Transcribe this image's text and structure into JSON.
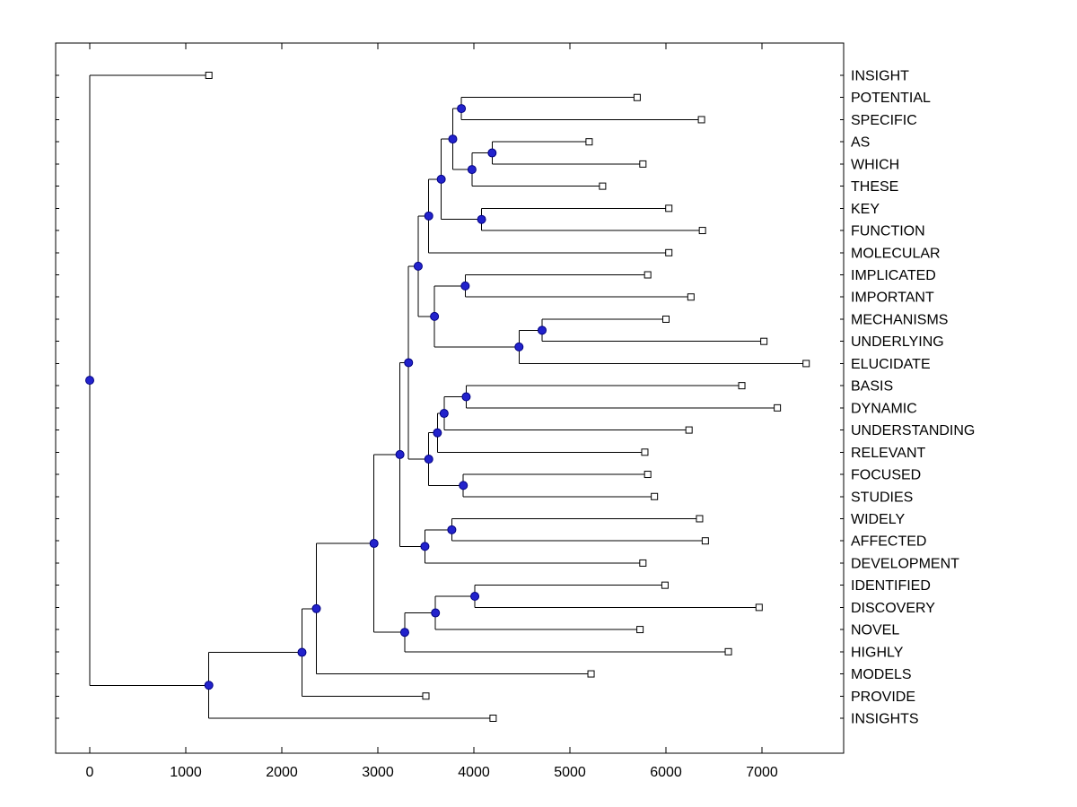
{
  "figure": {
    "background": "#FFFFFF",
    "axes_color": "#000000"
  },
  "chart_data": {
    "type": "dendrogram",
    "orientation": "left-to-right",
    "title": "",
    "xlabel": "",
    "ylabel": "",
    "grid": false,
    "legend": "none",
    "x_ticks": [
      0,
      1000,
      2000,
      3000,
      4000,
      5000,
      6000,
      7000
    ],
    "xlim": [
      -350,
      7850
    ],
    "n_leaves": 30,
    "branch_color": "#000000",
    "internal_node": {
      "marker": "filled-circle",
      "color": "#2222CC",
      "edge": "#000080"
    },
    "leaf_node": {
      "marker": "open-square",
      "fill": "#FFFFFF",
      "edge": "#000000"
    },
    "leaf_order": [
      "INSIGHT",
      "POTENTIAL",
      "SPECIFIC",
      "AS",
      "WHICH",
      "THESE",
      "KEY",
      "FUNCTION",
      "MOLECULAR",
      "IMPLICATED",
      "IMPORTANT",
      "MECHANISMS",
      "UNDERLYING",
      "ELUCIDATE",
      "BASIS",
      "DYNAMIC",
      "UNDERSTANDING",
      "RELEVANT",
      "FOCUSED",
      "STUDIES",
      "WIDELY",
      "AFFECTED",
      "DEVELOPMENT",
      "IDENTIFIED",
      "DISCOVERY",
      "NOVEL",
      "HIGHLY",
      "MODELS",
      "PROVIDE",
      "INSIGHTS"
    ],
    "tree": {
      "x": 0,
      "children": [
        {
          "label": "INSIGHT",
          "x": 1240
        },
        {
          "x": 1240,
          "children": [
            {
              "x": 2210,
              "children": [
                {
                  "x": 2360,
                  "children": [
                    {
                      "x": 2960,
                      "children": [
                        {
                          "x": 3230,
                          "children": [
                            {
                              "x": 3320,
                              "children": [
                                {
                                  "x": 3420,
                                  "children": [
                                    {
                                      "x": 3530,
                                      "children": [
                                        {
                                          "x": 3660,
                                          "children": [
                                            {
                                              "x": 3780,
                                              "children": [
                                                {
                                                  "x": 3870,
                                                  "children": [
                                                    {
                                                      "label": "POTENTIAL",
                                                      "x": 5700
                                                    },
                                                    {
                                                      "label": "SPECIFIC",
                                                      "x": 6370
                                                    }
                                                  ]
                                                },
                                                {
                                                  "x": 3980,
                                                  "children": [
                                                    {
                                                      "x": 4190,
                                                      "children": [
                                                        {
                                                          "label": "AS",
                                                          "x": 5200
                                                        },
                                                        {
                                                          "label": "WHICH",
                                                          "x": 5760
                                                        }
                                                      ]
                                                    },
                                                    {
                                                      "label": "THESE",
                                                      "x": 5340
                                                    }
                                                  ]
                                                }
                                              ]
                                            },
                                            {
                                              "x": 4080,
                                              "children": [
                                                {
                                                  "label": "KEY",
                                                  "x": 6030
                                                },
                                                {
                                                  "label": "FUNCTION",
                                                  "x": 6380
                                                }
                                              ]
                                            }
                                          ]
                                        },
                                        {
                                          "label": "MOLECULAR",
                                          "x": 6030
                                        }
                                      ]
                                    },
                                    {
                                      "x": 3590,
                                      "children": [
                                        {
                                          "x": 3910,
                                          "children": [
                                            {
                                              "label": "IMPLICATED",
                                              "x": 5810
                                            },
                                            {
                                              "label": "IMPORTANT",
                                              "x": 6260
                                            }
                                          ]
                                        },
                                        {
                                          "x": 4470,
                                          "children": [
                                            {
                                              "x": 4710,
                                              "children": [
                                                {
                                                  "label": "MECHANISMS",
                                                  "x": 6000
                                                },
                                                {
                                                  "label": "UNDERLYING",
                                                  "x": 7020
                                                }
                                              ]
                                            },
                                            {
                                              "label": "ELUCIDATE",
                                              "x": 7460
                                            }
                                          ]
                                        }
                                      ]
                                    }
                                  ]
                                },
                                {
                                  "x": 3530,
                                  "children": [
                                    {
                                      "x": 3620,
                                      "children": [
                                        {
                                          "x": 3690,
                                          "children": [
                                            {
                                              "x": 3920,
                                              "children": [
                                                {
                                                  "label": "BASIS",
                                                  "x": 6790
                                                },
                                                {
                                                  "label": "DYNAMIC",
                                                  "x": 7160
                                                }
                                              ]
                                            },
                                            {
                                              "label": "UNDERSTANDING",
                                              "x": 6240
                                            }
                                          ]
                                        },
                                        {
                                          "label": "RELEVANT",
                                          "x": 5780
                                        }
                                      ]
                                    },
                                    {
                                      "x": 3890,
                                      "children": [
                                        {
                                          "label": "FOCUSED",
                                          "x": 5810
                                        },
                                        {
                                          "label": "STUDIES",
                                          "x": 5880
                                        }
                                      ]
                                    }
                                  ]
                                }
                              ]
                            },
                            {
                              "x": 3490,
                              "children": [
                                {
                                  "x": 3770,
                                  "children": [
                                    {
                                      "label": "WIDELY",
                                      "x": 6350
                                    },
                                    {
                                      "label": "AFFECTED",
                                      "x": 6410
                                    }
                                  ]
                                },
                                {
                                  "label": "DEVELOPMENT",
                                  "x": 5760
                                }
                              ]
                            }
                          ]
                        },
                        {
                          "x": 3280,
                          "children": [
                            {
                              "x": 3600,
                              "children": [
                                {
                                  "x": 4010,
                                  "children": [
                                    {
                                      "label": "IDENTIFIED",
                                      "x": 5990
                                    },
                                    {
                                      "label": "DISCOVERY",
                                      "x": 6970
                                    }
                                  ]
                                },
                                {
                                  "label": "NOVEL",
                                  "x": 5730
                                }
                              ]
                            },
                            {
                              "label": "HIGHLY",
                              "x": 6650
                            }
                          ]
                        }
                      ]
                    },
                    {
                      "label": "MODELS",
                      "x": 5220
                    }
                  ]
                },
                {
                  "label": "PROVIDE",
                  "x": 3500
                }
              ]
            },
            {
              "label": "INSIGHTS",
              "x": 4200
            }
          ]
        }
      ]
    }
  }
}
